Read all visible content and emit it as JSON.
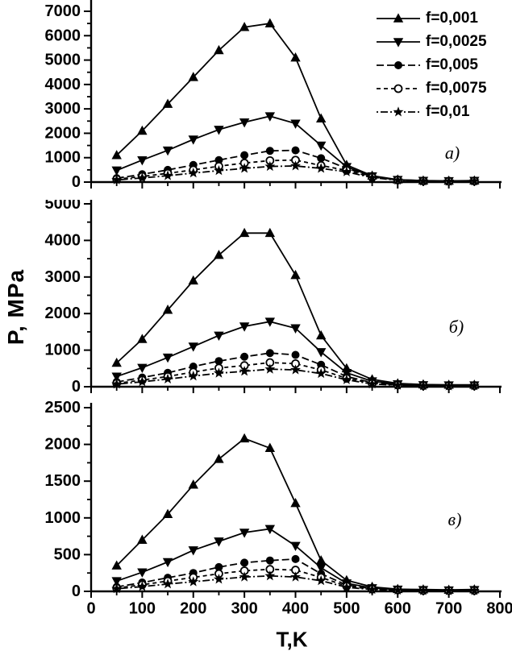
{
  "figure": {
    "background": "#ffffff",
    "ink_color": "#000000"
  },
  "y_axis_title": "P, MPa",
  "x_axis_title": "T,K",
  "legend": {
    "position": "top-right",
    "items": [
      {
        "label": "f=0,001",
        "marker": "triangle-up",
        "line_style": "solid"
      },
      {
        "label": "f=0,0025",
        "marker": "triangle-down",
        "line_style": "solid"
      },
      {
        "label": "f=0,005",
        "marker": "circle-filled",
        "line_style": "long-dash"
      },
      {
        "label": "f=0,0075",
        "marker": "circle-open",
        "line_style": "dash"
      },
      {
        "label": "f=0,01",
        "marker": "star",
        "line_style": "dash-dot"
      }
    ]
  },
  "chart_data": [
    {
      "type": "line",
      "panel_label": "а)",
      "xlabel": "T,K",
      "ylabel": "P, MPa",
      "xlim": [
        0,
        800
      ],
      "ylim": [
        0,
        7000
      ],
      "xticks": [
        0,
        100,
        200,
        300,
        400,
        500,
        600,
        700,
        800
      ],
      "xtick_minor_step": 50,
      "yticks": [
        0,
        1000,
        2000,
        3000,
        4000,
        5000,
        6000,
        7000
      ],
      "ytick_minor_step": 500,
      "grid": false,
      "x": [
        50,
        100,
        150,
        200,
        250,
        300,
        350,
        400,
        450,
        500,
        550,
        600,
        650,
        700,
        750
      ],
      "series": [
        {
          "name": "f=0,001",
          "marker": "triangle-up",
          "line_style": "solid",
          "values": [
            1100,
            2100,
            3200,
            4300,
            5400,
            6350,
            6500,
            5100,
            2600,
            700,
            260,
            100,
            60,
            50,
            60
          ]
        },
        {
          "name": "f=0,0025",
          "marker": "triangle-down",
          "line_style": "solid",
          "values": [
            480,
            900,
            1300,
            1750,
            2150,
            2450,
            2700,
            2400,
            1500,
            620,
            240,
            95,
            55,
            45,
            55
          ]
        },
        {
          "name": "f=0,005",
          "marker": "circle-filled",
          "line_style": "long-dash",
          "values": [
            160,
            320,
            500,
            700,
            900,
            1100,
            1280,
            1300,
            980,
            560,
            220,
            90,
            50,
            40,
            50
          ]
        },
        {
          "name": "f=0,0075",
          "marker": "circle-open",
          "line_style": "dash",
          "values": [
            120,
            230,
            360,
            500,
            650,
            780,
            880,
            900,
            680,
            480,
            200,
            85,
            45,
            35,
            45
          ]
        },
        {
          "name": "f=0,01",
          "marker": "star",
          "line_style": "dash-dot",
          "values": [
            90,
            170,
            260,
            370,
            470,
            560,
            640,
            660,
            560,
            420,
            180,
            75,
            40,
            30,
            40
          ]
        }
      ]
    },
    {
      "type": "line",
      "panel_label": "б)",
      "xlabel": "T,K",
      "ylabel": "P, MPa",
      "xlim": [
        0,
        800
      ],
      "ylim": [
        0,
        5000
      ],
      "xticks": [
        0,
        100,
        200,
        300,
        400,
        500,
        600,
        700,
        800
      ],
      "xtick_minor_step": 50,
      "yticks": [
        0,
        1000,
        2000,
        3000,
        4000,
        5000
      ],
      "ytick_minor_step": 500,
      "grid": false,
      "x": [
        50,
        100,
        150,
        200,
        250,
        300,
        350,
        400,
        450,
        500,
        550,
        600,
        650,
        700,
        750
      ],
      "series": [
        {
          "name": "f=0,001",
          "marker": "triangle-up",
          "line_style": "solid",
          "values": [
            650,
            1300,
            2100,
            2900,
            3600,
            4200,
            4200,
            3050,
            1400,
            500,
            200,
            90,
            60,
            50,
            50
          ]
        },
        {
          "name": "f=0,0025",
          "marker": "triangle-down",
          "line_style": "solid",
          "values": [
            280,
            520,
            800,
            1100,
            1400,
            1650,
            1780,
            1600,
            950,
            380,
            150,
            70,
            45,
            40,
            40
          ]
        },
        {
          "name": "f=0,005",
          "marker": "circle-filled",
          "line_style": "long-dash",
          "values": [
            130,
            250,
            380,
            550,
            700,
            820,
            920,
            870,
            600,
            280,
            110,
            55,
            35,
            30,
            35
          ]
        },
        {
          "name": "f=0,0075",
          "marker": "circle-open",
          "line_style": "dash",
          "values": [
            95,
            180,
            280,
            400,
            510,
            580,
            660,
            630,
            460,
            230,
            90,
            45,
            30,
            25,
            30
          ]
        },
        {
          "name": "f=0,01",
          "marker": "star",
          "line_style": "dash-dot",
          "values": [
            70,
            135,
            210,
            290,
            370,
            420,
            480,
            460,
            360,
            190,
            75,
            40,
            25,
            20,
            25
          ]
        }
      ]
    },
    {
      "type": "line",
      "panel_label": "в)",
      "xlabel": "T,K",
      "ylabel": "P, MPa",
      "xlim": [
        0,
        800
      ],
      "ylim": [
        0,
        2500
      ],
      "xticks": [
        0,
        100,
        200,
        300,
        400,
        500,
        600,
        700,
        800
      ],
      "xtick_minor_step": 50,
      "yticks": [
        0,
        500,
        1000,
        1500,
        2000,
        2500
      ],
      "ytick_minor_step": 250,
      "grid": false,
      "x": [
        50,
        100,
        150,
        200,
        250,
        300,
        350,
        400,
        450,
        500,
        550,
        600,
        650,
        700,
        750
      ],
      "series": [
        {
          "name": "f=0,001",
          "marker": "triangle-up",
          "line_style": "solid",
          "values": [
            350,
            700,
            1050,
            1450,
            1800,
            2080,
            1950,
            1200,
            420,
            150,
            60,
            30,
            25,
            20,
            25
          ]
        },
        {
          "name": "f=0,0025",
          "marker": "triangle-down",
          "line_style": "solid",
          "values": [
            140,
            260,
            400,
            560,
            680,
            800,
            850,
            620,
            320,
            110,
            45,
            25,
            20,
            15,
            20
          ]
        },
        {
          "name": "f=0,005",
          "marker": "circle-filled",
          "line_style": "long-dash",
          "values": [
            60,
            120,
            185,
            250,
            330,
            390,
            420,
            440,
            240,
            85,
            35,
            20,
            15,
            12,
            15
          ]
        },
        {
          "name": "f=0,0075",
          "marker": "circle-open",
          "line_style": "dash",
          "values": [
            45,
            90,
            140,
            190,
            240,
            280,
            300,
            290,
            190,
            70,
            30,
            18,
            12,
            10,
            12
          ]
        },
        {
          "name": "f=0,01",
          "marker": "star",
          "line_style": "dash-dot",
          "values": [
            35,
            65,
            100,
            130,
            165,
            195,
            210,
            195,
            145,
            55,
            25,
            15,
            10,
            8,
            10
          ]
        }
      ]
    }
  ]
}
